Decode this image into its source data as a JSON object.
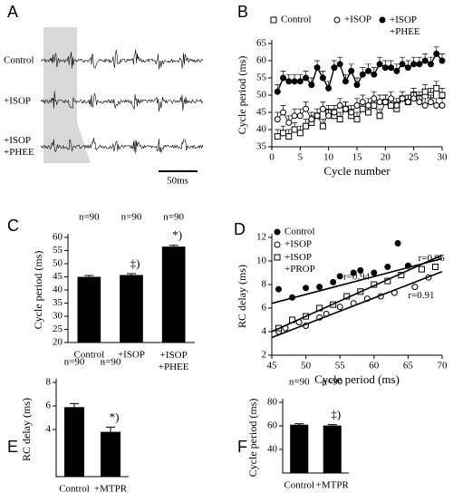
{
  "panel_a": {
    "label": "A",
    "traces": [
      "Control",
      "+ISOP",
      "+ISOP\n+PHEE"
    ],
    "scale_bar": "50ms"
  },
  "chart_data": [
    {
      "type": "line",
      "panel": "B",
      "xlabel": "Cycle number",
      "ylabel": "Cycle period (ms)",
      "xlim": [
        0,
        30
      ],
      "xticks": [
        0,
        5,
        10,
        15,
        20,
        25,
        30
      ],
      "ylim": [
        35,
        65
      ],
      "yticks": [
        35,
        40,
        45,
        50,
        55,
        60,
        65
      ],
      "legend": "top",
      "x": [
        1,
        2,
        3,
        4,
        5,
        6,
        7,
        8,
        9,
        10,
        11,
        12,
        13,
        14,
        15,
        16,
        17,
        18,
        19,
        20,
        21,
        22,
        23,
        24,
        25,
        26,
        27,
        28,
        29,
        30
      ],
      "series": [
        {
          "name": "Control",
          "marker": "square-open",
          "color": "#000",
          "values": [
            38,
            39,
            38,
            40,
            39,
            41,
            42,
            44,
            41,
            45,
            44,
            43,
            46,
            44,
            43,
            46,
            45,
            47,
            44,
            48,
            47,
            46,
            49,
            48,
            50,
            49,
            51,
            50,
            52,
            50
          ],
          "errors": [
            2,
            2,
            2,
            2,
            2,
            2,
            2,
            2,
            2,
            2,
            2,
            2,
            2,
            2,
            2,
            2,
            2,
            2,
            2,
            2,
            2,
            2,
            2,
            2,
            2,
            2,
            2,
            2,
            2,
            2
          ]
        },
        {
          "name": "+ISOP",
          "marker": "circle-open",
          "color": "#000",
          "values": [
            43,
            45,
            42,
            44,
            44,
            46,
            43,
            44,
            46,
            44,
            45,
            47,
            46,
            45,
            47,
            48,
            47,
            49,
            48,
            48,
            49,
            47,
            49,
            48,
            49,
            48,
            47,
            48,
            47,
            47
          ],
          "errors": [
            2,
            2,
            2,
            2,
            2,
            2,
            2,
            2,
            2,
            2,
            2,
            2,
            2,
            2,
            2,
            2,
            2,
            2,
            2,
            2,
            2,
            2,
            2,
            2,
            2,
            2,
            2,
            2,
            2,
            2
          ]
        },
        {
          "name": "+ISOP\n+PHEE",
          "marker": "circle-filled",
          "color": "#000",
          "values": [
            51,
            55,
            54,
            54,
            54,
            55,
            53,
            58,
            55,
            52,
            58,
            59,
            54,
            57,
            53,
            56,
            57,
            56,
            59,
            58,
            58,
            57,
            59,
            58,
            59,
            59,
            60,
            59,
            62,
            60
          ],
          "errors": [
            2,
            2,
            2,
            2,
            2,
            2,
            2,
            2,
            2,
            2,
            2,
            2,
            2,
            2,
            2,
            2,
            2,
            2,
            2,
            2,
            2,
            2,
            2,
            2,
            2,
            2,
            2,
            2,
            2,
            2
          ]
        }
      ]
    },
    {
      "type": "bar",
      "panel": "C",
      "ylabel": "Cycle period (ms)",
      "color": "#000",
      "ylim": [
        20,
        60
      ],
      "yticks": [
        20,
        25,
        30,
        35,
        40,
        45,
        50,
        55,
        60
      ],
      "categories": [
        "Control",
        "+ISOP",
        "+ISOP\n+PHEE"
      ],
      "values": [
        45,
        45.7,
        56.5
      ],
      "errors": [
        0.5,
        0.5,
        0.5
      ],
      "n_labels": [
        "n=90",
        "n=90",
        "n=90"
      ],
      "significance": [
        null,
        "‡)",
        "*)"
      ]
    },
    {
      "type": "scatter",
      "panel": "D",
      "xlabel": "Cycle period (ms)",
      "ylabel": "RC delay (ms)",
      "xlim": [
        45,
        70
      ],
      "xticks": [
        45,
        50,
        55,
        60,
        65,
        70
      ],
      "ylim": [
        2,
        12
      ],
      "yticks": [
        2,
        4,
        6,
        8,
        10,
        12
      ],
      "legend": "upper left",
      "series": [
        {
          "name": "Control",
          "marker": "circle-filled",
          "color": "#000",
          "x": [
            46,
            48,
            50,
            52,
            54,
            55,
            57,
            58,
            60,
            62,
            63.5,
            65
          ],
          "y": [
            7.6,
            6.9,
            7.7,
            7.8,
            8.2,
            8.7,
            9.0,
            9.2,
            9.0,
            9.5,
            11.5,
            9.6
          ],
          "fit_x": [
            45,
            70
          ],
          "fit_y": [
            6.4,
            10.2
          ],
          "r_label": "r=0.94"
        },
        {
          "name": "+ISOP",
          "marker": "circle-open",
          "color": "#000",
          "x": [
            46,
            47,
            49,
            50,
            52,
            53,
            55,
            57,
            59,
            61,
            63,
            66,
            68
          ],
          "y": [
            4.0,
            4.3,
            4.8,
            4.5,
            5.2,
            5.5,
            6.1,
            6.4,
            6.8,
            7.0,
            7.3,
            7.8,
            8.6
          ],
          "fit_x": [
            45,
            70
          ],
          "fit_y": [
            3.5,
            9.1
          ],
          "r_label": "r=0.91"
        },
        {
          "name": "+ISOP\n+PROP",
          "marker": "square-open",
          "color": "#000",
          "x": [
            46,
            48,
            50,
            52,
            54,
            56,
            58,
            60,
            62,
            64,
            67,
            69
          ],
          "y": [
            4.3,
            5.0,
            5.3,
            6.0,
            6.3,
            7.0,
            7.4,
            8.0,
            8.3,
            8.8,
            9.3,
            9.5
          ],
          "fit_x": [
            45,
            70
          ],
          "fit_y": [
            4.0,
            10.5
          ],
          "r_label": "r=0.96"
        }
      ]
    },
    {
      "type": "bar",
      "panel": "E",
      "ylabel": "RC delay (ms)",
      "color": "#000",
      "ylim": [
        0,
        8
      ],
      "yticks": [
        4,
        6,
        8
      ],
      "categories": [
        "Control",
        "+MTPR"
      ],
      "values": [
        5.9,
        3.8
      ],
      "errors": [
        0.3,
        0.4
      ],
      "n_labels": [
        "n=90",
        "n=90"
      ],
      "significance": [
        null,
        "*)"
      ]
    },
    {
      "type": "bar",
      "panel": "F",
      "ylabel": "Cycle period (ms)",
      "color": "#000",
      "ylim": [
        20,
        80
      ],
      "yticks": [
        40,
        60,
        80
      ],
      "categories": [
        "Control",
        "+MTPR"
      ],
      "values": [
        61,
        60.3
      ],
      "errors": [
        0.8,
        0.8
      ],
      "n_labels": [
        "n=90",
        "n=90"
      ],
      "significance": [
        null,
        "‡)"
      ]
    }
  ]
}
